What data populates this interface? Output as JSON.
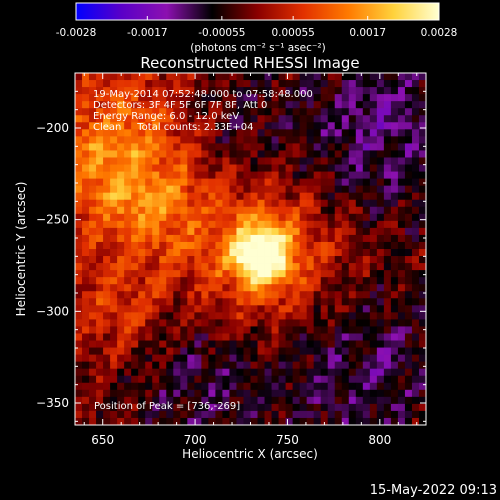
{
  "colors": {
    "background": "#000000",
    "text": "#ffffff",
    "colormap": [
      "#0000ff",
      "#5a00c8",
      "#8c10b0",
      "#000000",
      "#8a0000",
      "#e23000",
      "#ff7a00",
      "#ffd23c",
      "#ffffd2"
    ]
  },
  "colorbar": {
    "tick_labels": [
      "-0.0028",
      "-0.0017",
      "-0.00055",
      "0.00055",
      "0.0017",
      "0.0028"
    ],
    "tick_values": [
      -0.0028,
      -0.0017,
      -0.00055,
      0.00055,
      0.0017,
      0.0028
    ],
    "range": [
      -0.0028,
      0.0028
    ],
    "units_label": "(photons cm⁻² s⁻¹ asec⁻²)"
  },
  "chart_data": {
    "type": "heatmap",
    "title": "Reconstructed RHESSI Image",
    "xlabel": "Heliocentric X (arcsec)",
    "ylabel": "Heliocentric Y (arcsec)",
    "xlim": [
      635,
      825
    ],
    "ylim": [
      -362,
      -170
    ],
    "xticks": [
      650,
      700,
      750,
      800
    ],
    "yticks": [
      -200,
      -250,
      -300,
      -350
    ],
    "xtick_labels": [
      "650",
      "700",
      "750",
      "800"
    ],
    "ytick_labels": [
      "−200",
      "−250",
      "−300",
      "−350"
    ],
    "annotations": [
      "19-May-2014 07:52:48.000 to 07:58:48.000",
      "Detectors: 3F 4F 5F 6F 7F 8F, Att 0",
      "Energy Range: 6.0 - 12.0 keV",
      "Clean     Total counts: 2.33E+04"
    ],
    "peak_label": "Position of Peak = [736,-269]",
    "peak_position": [
      736,
      -269
    ],
    "image_sources": [
      {
        "x": 736,
        "y": -269,
        "amplitude": 0.0028,
        "sigma": 11
      },
      {
        "x": 740,
        "y": -272,
        "amplitude": 0.0012,
        "sigma": 30
      },
      {
        "x": 655,
        "y": -210,
        "amplitude": 0.0013,
        "sigma": 28
      },
      {
        "x": 675,
        "y": -245,
        "amplitude": 0.001,
        "sigma": 22
      },
      {
        "x": 660,
        "y": -300,
        "amplitude": 0.0007,
        "sigma": 18
      },
      {
        "x": 800,
        "y": -200,
        "amplitude": -0.0012,
        "sigma": 35
      },
      {
        "x": 790,
        "y": -330,
        "amplitude": -0.001,
        "sigma": 38
      },
      {
        "x": 700,
        "y": -340,
        "amplitude": -0.0009,
        "sigma": 30
      },
      {
        "x": 720,
        "y": -195,
        "amplitude": -0.0006,
        "sigma": 22
      }
    ]
  },
  "footer": {
    "timestamp": "15-May-2022 09:13"
  }
}
